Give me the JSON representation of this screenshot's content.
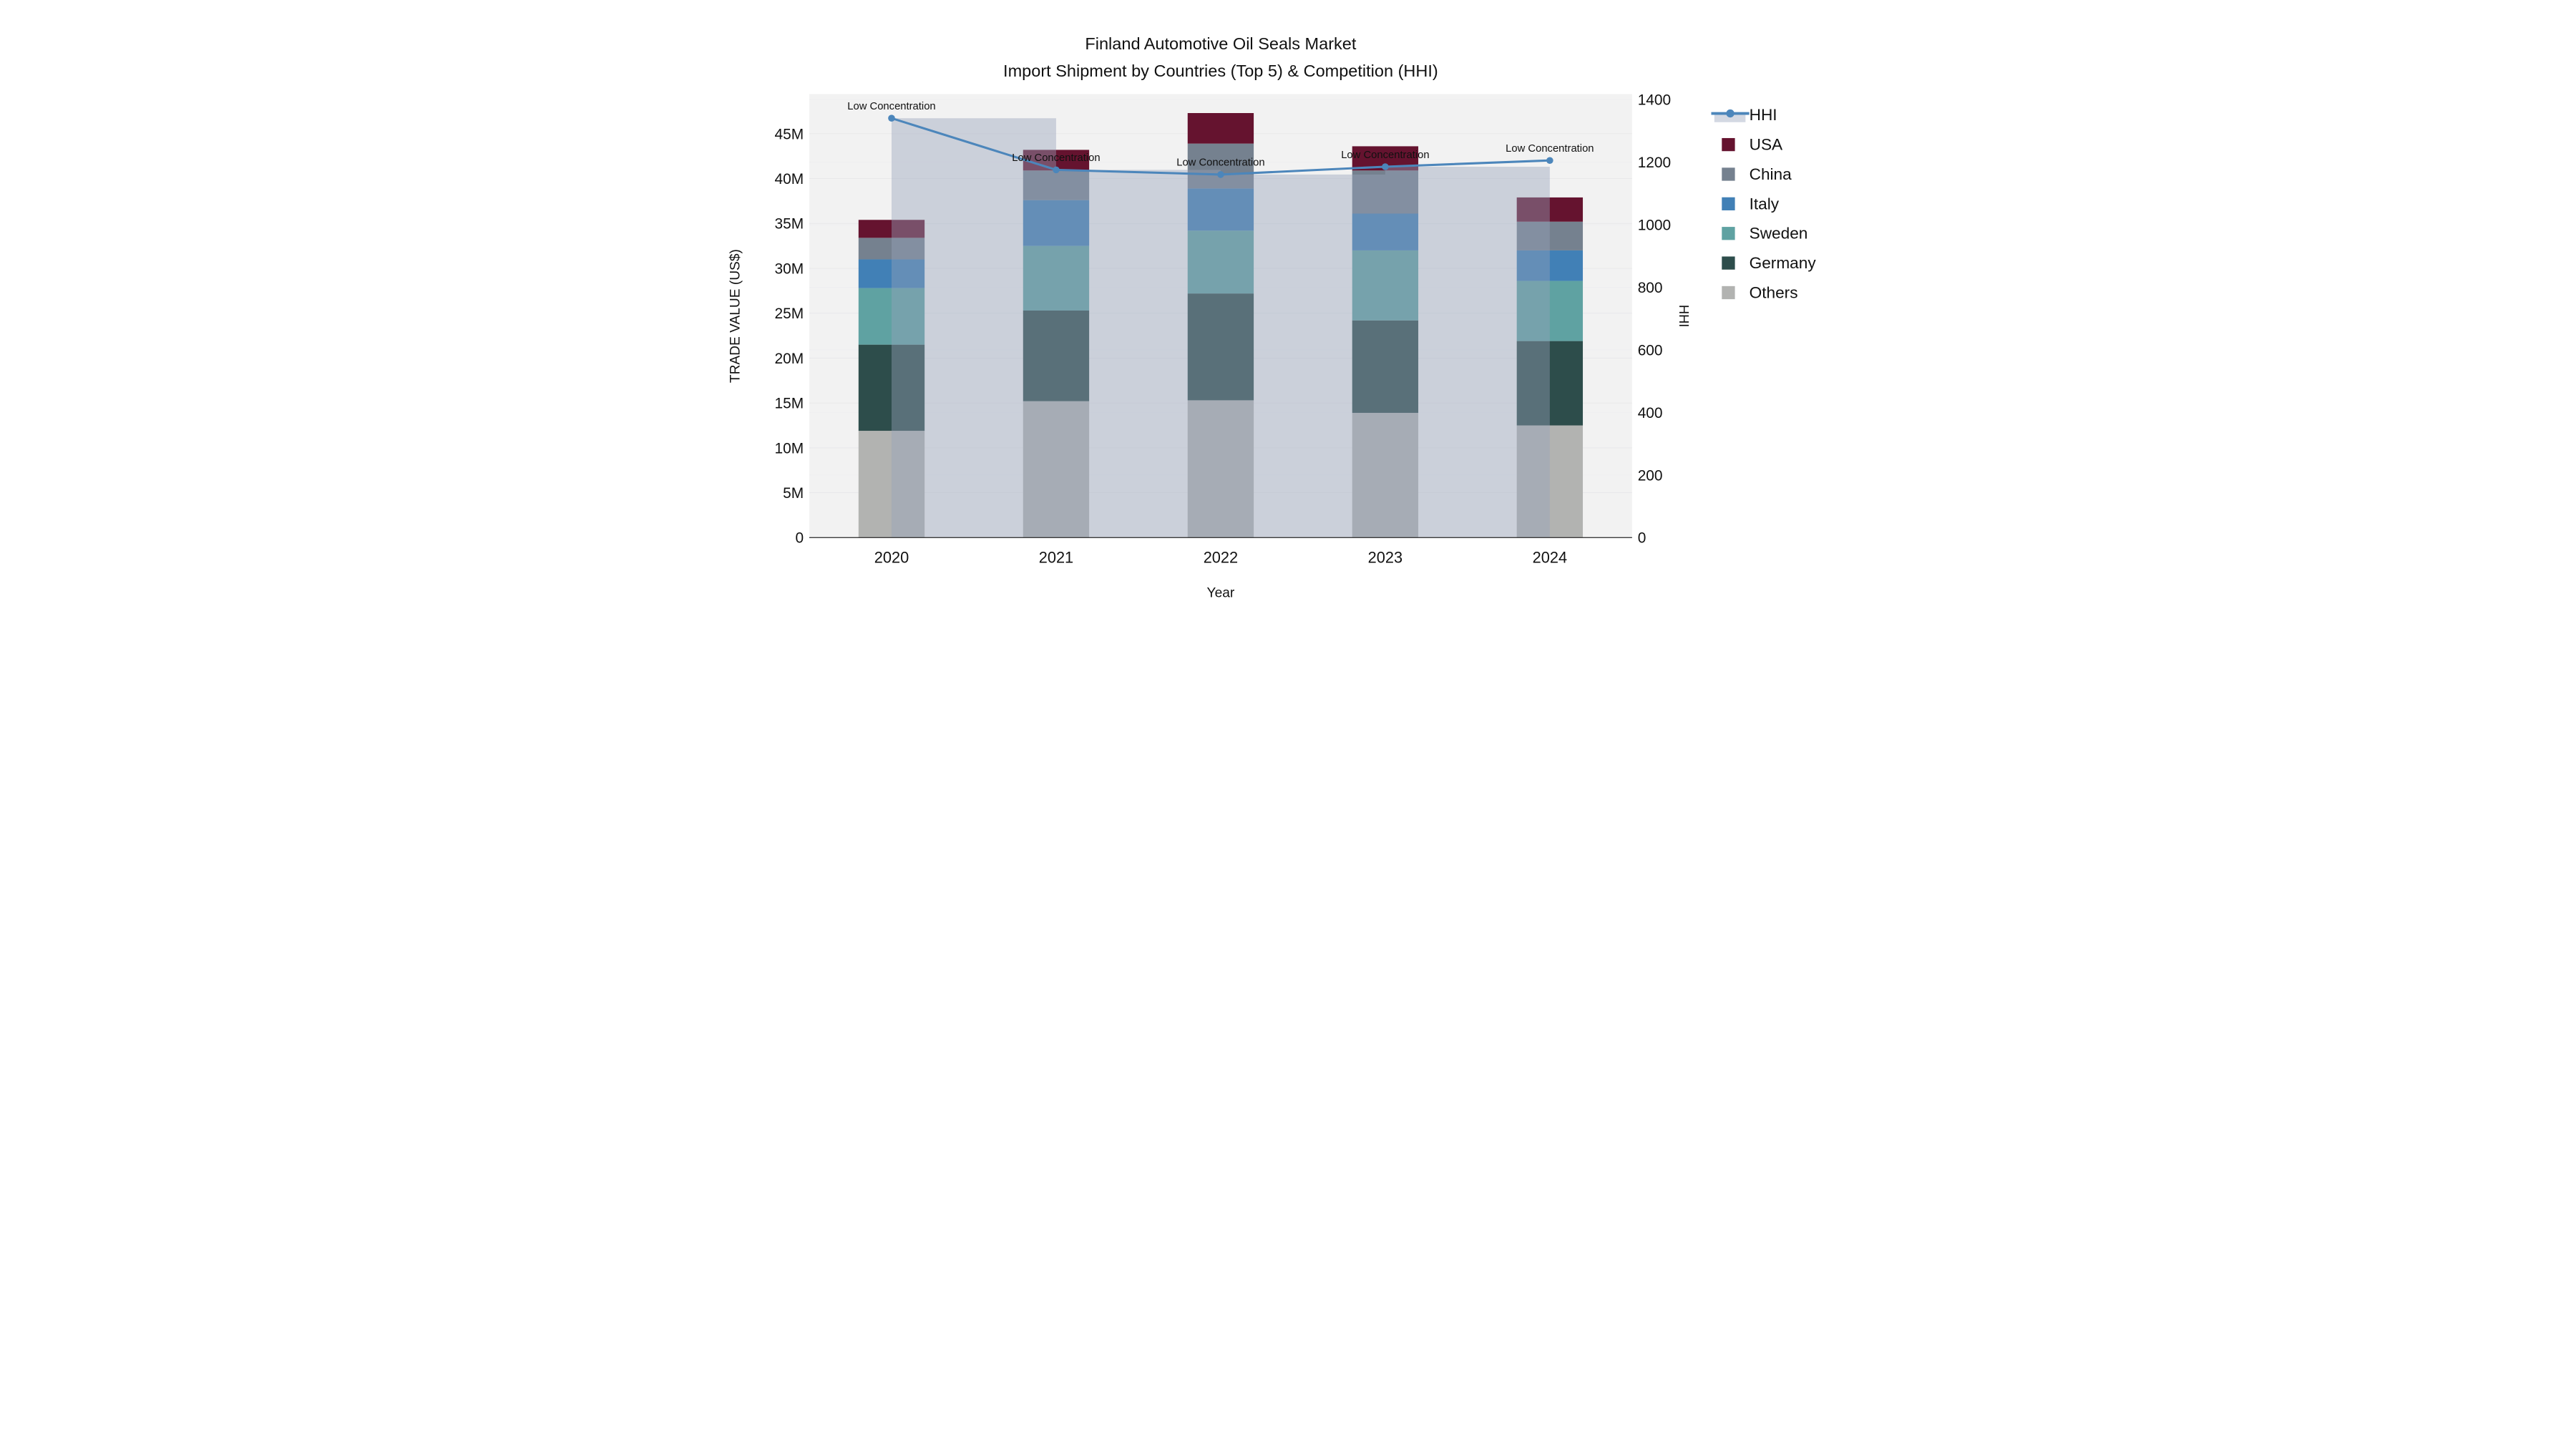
{
  "chart_data": {
    "type": "bar",
    "subtype": "stacked-bar-with-line-overlay",
    "title_line1": "Finland Automotive Oil Seals Market",
    "title_line2": "Import Shipment by Countries (Top 5) & Competition (HHI)",
    "xlabel": "Year",
    "ylabel_left": "TRADE VALUE (US$)",
    "ylabel_right": "HHI",
    "categories": [
      "2020",
      "2021",
      "2022",
      "2023",
      "2024"
    ],
    "unit_left": "millions US$",
    "series": [
      {
        "name": "Others",
        "color": "#b2b3b1",
        "values": [
          11.9,
          15.2,
          15.3,
          13.9,
          12.5
        ]
      },
      {
        "name": "Germany",
        "color": "#2d4d4b",
        "values": [
          9.6,
          10.1,
          11.9,
          10.3,
          9.4
        ]
      },
      {
        "name": "Sweden",
        "color": "#5fa2a2",
        "values": [
          6.3,
          7.2,
          7.0,
          7.8,
          6.7
        ]
      },
      {
        "name": "Italy",
        "color": "#4180b6",
        "values": [
          3.2,
          5.1,
          4.7,
          4.1,
          3.4
        ]
      },
      {
        "name": "China",
        "color": "#75818f",
        "values": [
          2.4,
          3.3,
          5.0,
          4.8,
          3.2
        ]
      },
      {
        "name": "USA",
        "color": "#65132f",
        "values": [
          2.0,
          2.3,
          3.4,
          2.7,
          2.7
        ]
      }
    ],
    "totals": [
      35.4,
      43.2,
      47.3,
      43.6,
      37.9
    ],
    "hhi": {
      "name": "HHI",
      "values": [
        1340,
        1175,
        1160,
        1185,
        1205
      ],
      "line_color": "#4c86bb",
      "band_color": "rgba(150,163,186,0.42)",
      "annotation": "Low Concentration"
    },
    "annotations": [
      "Low Concentration",
      "Low Concentration",
      "Low Concentration",
      "Low Concentration",
      "Low Concentration"
    ],
    "y_left": {
      "labels": [
        "0",
        "5M",
        "10M",
        "15M",
        "20M",
        "25M",
        "30M",
        "35M",
        "40M",
        "45M"
      ],
      "values": [
        0,
        5,
        10,
        15,
        20,
        25,
        30,
        35,
        40,
        45
      ],
      "max_visible": 49.4
    },
    "y_right": {
      "labels": [
        "0",
        "200",
        "400",
        "600",
        "800",
        "1000",
        "1200",
        "1400"
      ],
      "values": [
        0,
        200,
        400,
        600,
        800,
        1000,
        1200,
        1400
      ],
      "max": 1400
    },
    "legend": {
      "entries": [
        {
          "label": "HHI",
          "kind": "line"
        },
        {
          "label": "USA",
          "kind": "swatch",
          "color": "#65132f"
        },
        {
          "label": "China",
          "kind": "swatch",
          "color": "#75818f"
        },
        {
          "label": "Italy",
          "kind": "swatch",
          "color": "#4180b6"
        },
        {
          "label": "Sweden",
          "kind": "swatch",
          "color": "#5fa2a2"
        },
        {
          "label": "Germany",
          "kind": "swatch",
          "color": "#2d4d4b"
        },
        {
          "label": "Others",
          "kind": "swatch",
          "color": "#b2b3b1"
        }
      ],
      "position": "right"
    },
    "layout": {
      "grid": true,
      "plot_bg": "#f2f2f2",
      "grid_color_left": "#e7e7e9",
      "grid_color_right": "#eeeef0",
      "axis_line_color": "#3c3c3c"
    }
  }
}
